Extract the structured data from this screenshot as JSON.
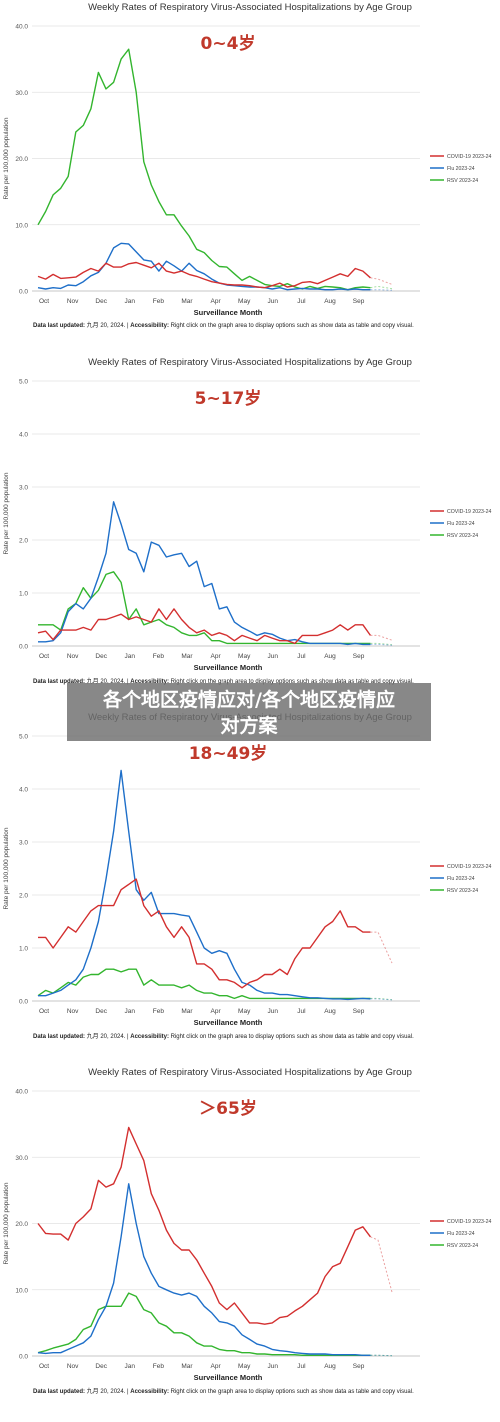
{
  "colors": {
    "covid": "#d32f2f",
    "flu": "#1e6fc9",
    "rsv": "#33b52e",
    "age_label": "#c0392b",
    "grid": "#e2e2e2"
  },
  "footer": {
    "label": "Data last updated:",
    "date": " 九月 20, 2024. | ",
    "access_label": "Accessibility:",
    "access_text": " Right click on the graph area to display options such as show data as table and copy visual."
  },
  "overlay": {
    "line1": "各个地区疫情应对/各个地区疫情应",
    "line2": "对方案"
  },
  "chart_data": [
    {
      "type": "line",
      "title": "Weekly Rates of Respiratory Virus-Associated Hospitalizations by Age Group",
      "age_label": "0~4岁",
      "xlabel": "Surveillance Month",
      "ylabel": "Rate per 100,000 population",
      "ylim": [
        0,
        40
      ],
      "yticks": [
        "0.0",
        "10.0",
        "20.0",
        "30.0",
        "40.0"
      ],
      "x_tick_labels": [
        "Oct",
        "Nov",
        "Dec",
        "Jan",
        "Feb",
        "Mar",
        "Apr",
        "May",
        "Jun",
        "Jul",
        "Aug",
        "Sep"
      ],
      "legend_position": "right",
      "series": [
        {
          "name": "COVID-19 2023-24",
          "key": "covid",
          "values": [
            2.2,
            1.8,
            2.5,
            1.9,
            2.0,
            2.1,
            2.8,
            3.4,
            3.0,
            4.2,
            3.6,
            3.6,
            4.1,
            4.3,
            3.9,
            3.5,
            4.2,
            3.0,
            2.7,
            3.0,
            2.5,
            2.2,
            1.8,
            1.4,
            1.2,
            1.0,
            0.9,
            0.9,
            0.8,
            0.6,
            0.5,
            0.8,
            1.2,
            0.6,
            0.8,
            1.3,
            1.4,
            1.1,
            1.6,
            2.1,
            2.6,
            2.2,
            3.4,
            3.0,
            2.0,
            1.8
          ]
        },
        {
          "name": "Flu 2023-24",
          "key": "flu",
          "values": [
            0.5,
            0.3,
            0.5,
            0.4,
            0.9,
            0.8,
            1.4,
            2.3,
            2.8,
            4.2,
            6.5,
            7.2,
            7.1,
            5.9,
            4.7,
            4.5,
            3.0,
            4.5,
            3.8,
            3.0,
            4.2,
            3.1,
            2.6,
            1.8,
            1.2,
            0.9,
            0.8,
            0.7,
            0.6,
            0.6,
            0.5,
            0.3,
            0.5,
            0.2,
            0.3,
            0.4,
            0.3,
            0.3,
            0.2,
            0.2,
            0.3,
            0.2,
            0.3,
            0.2,
            0.2,
            0.2
          ]
        },
        {
          "name": "RSV 2023-24",
          "key": "rsv",
          "values": [
            10.0,
            12.0,
            14.5,
            15.5,
            17.3,
            24.0,
            25.0,
            27.5,
            33.0,
            30.5,
            31.5,
            35.0,
            36.5,
            30.0,
            19.5,
            16.0,
            13.5,
            11.5,
            11.5,
            9.8,
            8.3,
            6.3,
            5.8,
            4.6,
            3.7,
            3.6,
            2.6,
            1.6,
            2.2,
            1.6,
            1.0,
            0.8,
            0.7,
            1.1,
            0.6,
            0.3,
            0.7,
            0.4,
            0.7,
            0.6,
            0.5,
            0.2,
            0.5,
            0.6,
            0.5,
            0.7
          ]
        }
      ]
    },
    {
      "type": "line",
      "title": "Weekly Rates of Respiratory Virus-Associated Hospitalizations by Age Group",
      "age_label": "5~17岁",
      "xlabel": "Surveillance Month",
      "ylabel": "Rate per 100,000 population",
      "ylim": [
        0,
        5
      ],
      "yticks": [
        "0.0",
        "1.0",
        "2.0",
        "3.0",
        "4.0",
        "5.0"
      ],
      "x_tick_labels": [
        "Oct",
        "Nov",
        "Dec",
        "Jan",
        "Feb",
        "Mar",
        "Apr",
        "May",
        "Jun",
        "Jul",
        "Aug",
        "Sep"
      ],
      "legend_position": "right",
      "series": [
        {
          "name": "COVID-19 2023-24",
          "key": "covid",
          "values": [
            0.25,
            0.28,
            0.12,
            0.3,
            0.3,
            0.3,
            0.35,
            0.3,
            0.5,
            0.5,
            0.55,
            0.6,
            0.5,
            0.55,
            0.5,
            0.45,
            0.7,
            0.5,
            0.7,
            0.5,
            0.35,
            0.25,
            0.3,
            0.2,
            0.25,
            0.2,
            0.1,
            0.2,
            0.15,
            0.1,
            0.2,
            0.15,
            0.1,
            0.1,
            0.05,
            0.2,
            0.2,
            0.2,
            0.25,
            0.3,
            0.4,
            0.3,
            0.4,
            0.4,
            0.2,
            0.2
          ]
        },
        {
          "name": "Flu 2023-24",
          "key": "flu",
          "values": [
            0.08,
            0.08,
            0.1,
            0.25,
            0.65,
            0.8,
            0.7,
            0.9,
            1.3,
            1.75,
            2.72,
            2.3,
            1.82,
            1.75,
            1.4,
            1.96,
            1.9,
            1.68,
            1.72,
            1.75,
            1.5,
            1.6,
            1.12,
            1.18,
            0.7,
            0.74,
            0.45,
            0.35,
            0.28,
            0.2,
            0.25,
            0.22,
            0.15,
            0.1,
            0.12,
            0.08,
            0.05,
            0.05,
            0.05,
            0.05,
            0.05,
            0.03,
            0.05,
            0.03,
            0.03,
            0.03
          ]
        },
        {
          "name": "RSV 2023-24",
          "key": "rsv",
          "values": [
            0.4,
            0.4,
            0.4,
            0.3,
            0.7,
            0.8,
            1.1,
            0.9,
            1.05,
            1.35,
            1.4,
            1.2,
            0.5,
            0.7,
            0.4,
            0.45,
            0.5,
            0.4,
            0.35,
            0.25,
            0.2,
            0.2,
            0.25,
            0.1,
            0.1,
            0.05,
            0.05,
            0.05,
            0.05,
            0.05,
            0.05,
            0.05,
            0.05,
            0.05,
            0.05,
            0.05,
            0.05,
            0.05,
            0.05,
            0.05,
            0.05,
            0.05,
            0.05,
            0.05,
            0.05,
            0.05
          ]
        }
      ]
    },
    {
      "type": "line",
      "title": "Weekly Rates of Respiratory Virus-Associated Hospitalizations by Age Group",
      "age_label": "18~49岁",
      "xlabel": "Surveillance Month",
      "ylabel": "Rate per 100,000 population",
      "ylim": [
        0,
        5
      ],
      "yticks": [
        "0.0",
        "1.0",
        "2.0",
        "3.0",
        "4.0",
        "5.0"
      ],
      "x_tick_labels": [
        "Oct",
        "Nov",
        "Dec",
        "Jan",
        "Feb",
        "Mar",
        "Apr",
        "May",
        "Jun",
        "Jul",
        "Aug",
        "Sep"
      ],
      "legend_position": "right",
      "series": [
        {
          "name": "COVID-19 2023-24",
          "key": "covid",
          "values": [
            1.2,
            1.2,
            1.0,
            1.2,
            1.4,
            1.3,
            1.5,
            1.7,
            1.8,
            1.8,
            1.8,
            2.1,
            2.2,
            2.3,
            1.8,
            1.6,
            1.7,
            1.4,
            1.2,
            1.4,
            1.2,
            0.7,
            0.7,
            0.6,
            0.4,
            0.4,
            0.35,
            0.25,
            0.35,
            0.4,
            0.5,
            0.5,
            0.6,
            0.5,
            0.8,
            1.0,
            1.0,
            1.2,
            1.4,
            1.5,
            1.7,
            1.4,
            1.4,
            1.3,
            1.3,
            1.3
          ]
        },
        {
          "name": "Flu 2023-24",
          "key": "flu",
          "values": [
            0.1,
            0.1,
            0.15,
            0.2,
            0.3,
            0.4,
            0.6,
            1.0,
            1.5,
            2.3,
            3.2,
            4.35,
            3.2,
            2.1,
            1.9,
            2.05,
            1.65,
            1.65,
            1.65,
            1.62,
            1.6,
            1.3,
            1.0,
            0.9,
            0.95,
            0.9,
            0.6,
            0.35,
            0.3,
            0.2,
            0.15,
            0.15,
            0.12,
            0.12,
            0.1,
            0.08,
            0.06,
            0.06,
            0.05,
            0.04,
            0.04,
            0.03,
            0.04,
            0.05,
            0.04,
            0.04
          ]
        },
        {
          "name": "RSV 2023-24",
          "key": "rsv",
          "values": [
            0.1,
            0.2,
            0.15,
            0.25,
            0.35,
            0.3,
            0.45,
            0.5,
            0.5,
            0.6,
            0.6,
            0.55,
            0.6,
            0.6,
            0.3,
            0.4,
            0.3,
            0.3,
            0.3,
            0.25,
            0.3,
            0.2,
            0.15,
            0.15,
            0.1,
            0.1,
            0.05,
            0.1,
            0.05,
            0.05,
            0.05,
            0.05,
            0.05,
            0.05,
            0.05,
            0.05,
            0.05,
            0.05,
            0.05,
            0.05,
            0.05,
            0.05,
            0.05,
            0.05,
            0.05,
            0.05
          ]
        }
      ]
    },
    {
      "type": "line",
      "title": "Weekly Rates of Respiratory Virus-Associated Hospitalizations by Age Group",
      "age_label": "＞65岁",
      "xlabel": "Surveillance Month",
      "ylabel": "Rate per 100,000 population",
      "ylim": [
        0,
        40
      ],
      "yticks": [
        "0.0",
        "10.0",
        "20.0",
        "30.0",
        "40.0"
      ],
      "x_tick_labels": [
        "Oct",
        "Nov",
        "Dec",
        "Jan",
        "Feb",
        "Mar",
        "Apr",
        "May",
        "Jun",
        "Jul",
        "Aug",
        "Sep"
      ],
      "legend_position": "right",
      "series": [
        {
          "name": "COVID-19 2023-24",
          "key": "covid",
          "values": [
            20.0,
            18.5,
            18.4,
            18.4,
            17.5,
            20.0,
            21.0,
            22.2,
            26.5,
            25.5,
            26.0,
            28.5,
            34.5,
            32.0,
            29.5,
            24.5,
            22.0,
            19.0,
            17.0,
            16.0,
            16.0,
            14.5,
            12.5,
            10.5,
            8.0,
            7.0,
            8.0,
            6.5,
            5.0,
            5.0,
            4.8,
            5.0,
            5.8,
            6.0,
            6.8,
            7.5,
            8.5,
            9.5,
            12.0,
            13.5,
            14.0,
            16.5,
            19.0,
            19.5,
            18.0,
            17.5
          ]
        },
        {
          "name": "Flu 2023-24",
          "key": "flu",
          "values": [
            0.5,
            0.4,
            0.5,
            0.5,
            1.0,
            1.5,
            2.0,
            3.0,
            5.5,
            7.5,
            11.0,
            18.0,
            26.0,
            20.0,
            15.0,
            12.5,
            10.5,
            10.0,
            9.5,
            9.2,
            9.5,
            9.0,
            7.5,
            6.5,
            5.2,
            5.0,
            4.5,
            3.2,
            2.5,
            1.8,
            1.5,
            1.0,
            0.8,
            0.7,
            0.5,
            0.4,
            0.3,
            0.3,
            0.3,
            0.2,
            0.2,
            0.2,
            0.2,
            0.1,
            0.1,
            0.1
          ]
        },
        {
          "name": "RSV 2023-24",
          "key": "rsv",
          "values": [
            0.5,
            0.8,
            1.2,
            1.5,
            1.8,
            2.5,
            4.0,
            4.5,
            7.0,
            7.5,
            7.5,
            7.5,
            9.5,
            9.0,
            7.0,
            6.5,
            5.0,
            4.5,
            3.5,
            3.5,
            3.0,
            2.0,
            1.5,
            1.5,
            1.0,
            0.8,
            0.8,
            0.5,
            0.5,
            0.3,
            0.3,
            0.2,
            0.2,
            0.2,
            0.2,
            0.1,
            0.1,
            0.1,
            0.1,
            0.1,
            0.1,
            0.1,
            0.1,
            0.1,
            0.1,
            0.1
          ]
        }
      ]
    }
  ]
}
